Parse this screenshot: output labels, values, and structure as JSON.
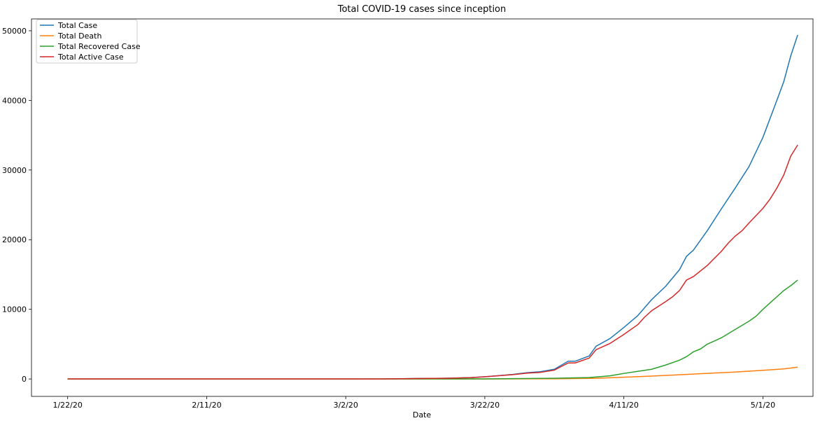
{
  "chart_data": {
    "type": "line",
    "title": "Total COVID-19 cases since inception",
    "xlabel": "Date",
    "ylabel": "",
    "x_start": "1/22/20",
    "x_ticks": [
      {
        "label": "1/22/20",
        "day": 0
      },
      {
        "label": "2/11/20",
        "day": 20
      },
      {
        "label": "3/2/20",
        "day": 40
      },
      {
        "label": "3/22/20",
        "day": 60
      },
      {
        "label": "4/11/20",
        "day": 80
      },
      {
        "label": "5/1/20",
        "day": 100
      }
    ],
    "xlim": [
      -5.2,
      107.2
    ],
    "ylim": [
      -2500,
      51700
    ],
    "y_ticks": [
      0,
      10000,
      20000,
      30000,
      40000,
      50000
    ],
    "grid": false,
    "legend": "upper-left",
    "series": [
      {
        "name": "Total Case",
        "color": "#1f77b4",
        "points": [
          [
            0,
            0
          ],
          [
            40,
            0
          ],
          [
            45,
            5
          ],
          [
            50,
            60
          ],
          [
            55,
            110
          ],
          [
            58,
            200
          ],
          [
            60,
            330
          ],
          [
            62,
            480
          ],
          [
            64,
            650
          ],
          [
            66,
            900
          ],
          [
            68,
            1050
          ],
          [
            70,
            1400
          ],
          [
            72,
            2550
          ],
          [
            73,
            2550
          ],
          [
            75,
            3300
          ],
          [
            76,
            4700
          ],
          [
            78,
            5800
          ],
          [
            80,
            7400
          ],
          [
            82,
            9100
          ],
          [
            84,
            11400
          ],
          [
            86,
            13300
          ],
          [
            88,
            15700
          ],
          [
            89,
            17600
          ],
          [
            90,
            18500
          ],
          [
            92,
            21300
          ],
          [
            94,
            24400
          ],
          [
            96,
            27400
          ],
          [
            98,
            30500
          ],
          [
            100,
            34700
          ],
          [
            102,
            40000
          ],
          [
            103,
            42700
          ],
          [
            104,
            46400
          ],
          [
            105,
            49400
          ]
        ]
      },
      {
        "name": "Total Death",
        "color": "#ff7f0e",
        "points": [
          [
            0,
            0
          ],
          [
            60,
            5
          ],
          [
            70,
            30
          ],
          [
            76,
            100
          ],
          [
            80,
            250
          ],
          [
            84,
            420
          ],
          [
            88,
            600
          ],
          [
            92,
            800
          ],
          [
            96,
            1000
          ],
          [
            100,
            1250
          ],
          [
            103,
            1450
          ],
          [
            105,
            1700
          ]
        ]
      },
      {
        "name": "Total Recovered Case",
        "color": "#2ca02c",
        "points": [
          [
            0,
            0
          ],
          [
            60,
            10
          ],
          [
            70,
            100
          ],
          [
            75,
            200
          ],
          [
            78,
            450
          ],
          [
            80,
            800
          ],
          [
            82,
            1100
          ],
          [
            84,
            1400
          ],
          [
            86,
            2000
          ],
          [
            88,
            2700
          ],
          [
            89,
            3200
          ],
          [
            90,
            3900
          ],
          [
            91,
            4300
          ],
          [
            92,
            5000
          ],
          [
            94,
            5900
          ],
          [
            96,
            7100
          ],
          [
            98,
            8300
          ],
          [
            99,
            9000
          ],
          [
            100,
            10000
          ],
          [
            101,
            10900
          ],
          [
            102,
            11800
          ],
          [
            103,
            12700
          ],
          [
            104,
            13400
          ],
          [
            105,
            14200
          ]
        ]
      },
      {
        "name": "Total Active Case",
        "color": "#d62728",
        "points": [
          [
            0,
            0
          ],
          [
            40,
            0
          ],
          [
            45,
            5
          ],
          [
            50,
            60
          ],
          [
            55,
            110
          ],
          [
            58,
            190
          ],
          [
            60,
            320
          ],
          [
            62,
            470
          ],
          [
            64,
            620
          ],
          [
            66,
            830
          ],
          [
            68,
            950
          ],
          [
            70,
            1270
          ],
          [
            72,
            2300
          ],
          [
            73,
            2300
          ],
          [
            75,
            3000
          ],
          [
            76,
            4200
          ],
          [
            78,
            5100
          ],
          [
            80,
            6400
          ],
          [
            82,
            7800
          ],
          [
            83,
            8900
          ],
          [
            84,
            9800
          ],
          [
            86,
            11100
          ],
          [
            87,
            11800
          ],
          [
            88,
            12700
          ],
          [
            89,
            14200
          ],
          [
            90,
            14700
          ],
          [
            92,
            16300
          ],
          [
            94,
            18300
          ],
          [
            95,
            19500
          ],
          [
            96,
            20500
          ],
          [
            97,
            21300
          ],
          [
            98,
            22400
          ],
          [
            100,
            24500
          ],
          [
            101,
            25800
          ],
          [
            102,
            27400
          ],
          [
            103,
            29300
          ],
          [
            104,
            32000
          ],
          [
            105,
            33600
          ]
        ]
      }
    ]
  }
}
